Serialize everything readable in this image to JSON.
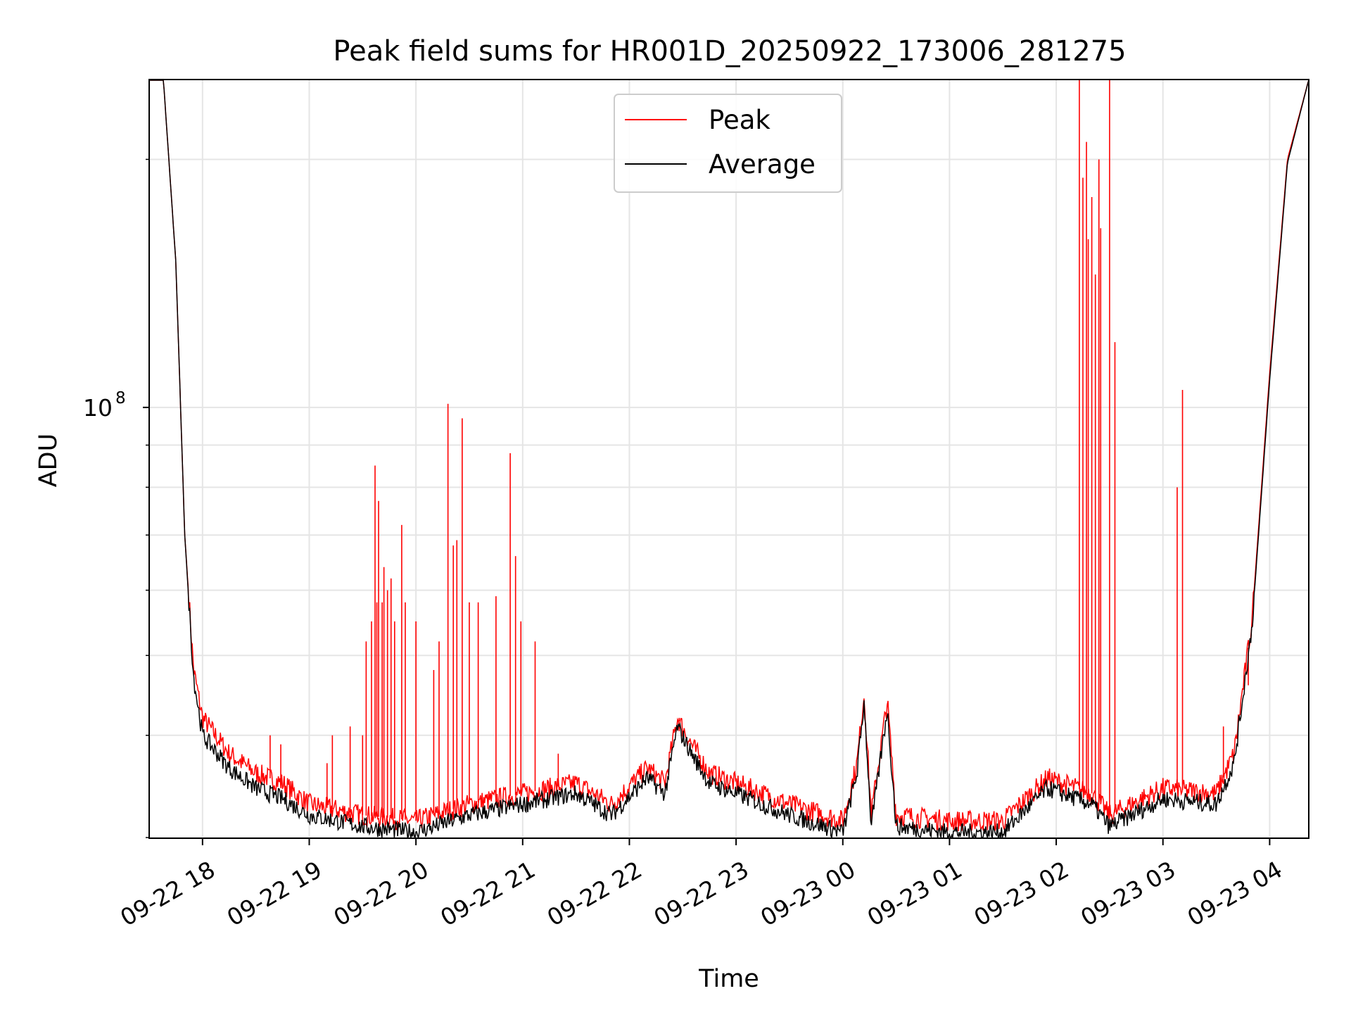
{
  "chart_data": {
    "type": "line",
    "title": "Peak field sums for HR001D_20250922_173006_281275",
    "xlabel": "Time",
    "ylabel": "ADU",
    "y_scale": "log",
    "grid": true,
    "legend_position": "upper center",
    "x_range": [
      "2025-09-22 17:30",
      "2025-09-23 04:22"
    ],
    "ylim": [
      30000000,
      250000000
    ],
    "x_ticks": [
      "09-22 18",
      "09-22 19",
      "09-22 20",
      "09-22 21",
      "09-22 22",
      "09-22 23",
      "09-23 00",
      "09-23 01",
      "09-23 02",
      "09-23 03",
      "09-23 04"
    ],
    "y_ticks": [
      {
        "label": "10",
        "exponent": "8",
        "value": 100000000
      }
    ],
    "series": [
      {
        "name": "Peak",
        "color": "#ff0000",
        "baseline": [
          [
            "2025-09-22 17:30",
            250000000
          ],
          [
            "2025-09-22 17:38",
            250000000
          ],
          [
            "2025-09-22 17:45",
            150000000
          ],
          [
            "2025-09-22 17:50",
            70000000
          ],
          [
            "2025-09-22 17:55",
            48000000
          ],
          [
            "2025-09-22 18:00",
            42000000
          ],
          [
            "2025-09-22 18:15",
            38000000
          ],
          [
            "2025-09-22 18:30",
            36000000
          ],
          [
            "2025-09-22 18:45",
            35000000
          ],
          [
            "2025-09-22 19:00",
            33000000
          ],
          [
            "2025-09-22 19:30",
            32000000
          ],
          [
            "2025-09-22 20:00",
            31500000
          ],
          [
            "2025-09-22 20:30",
            33000000
          ],
          [
            "2025-09-22 21:00",
            34000000
          ],
          [
            "2025-09-22 21:30",
            35000000
          ],
          [
            "2025-09-22 21:50",
            33000000
          ],
          [
            "2025-09-22 22:10",
            36500000
          ],
          [
            "2025-09-22 22:20",
            35000000
          ],
          [
            "2025-09-22 22:27",
            42000000
          ],
          [
            "2025-09-22 22:35",
            39000000
          ],
          [
            "2025-09-22 22:45",
            36000000
          ],
          [
            "2025-09-22 23:00",
            35000000
          ],
          [
            "2025-09-22 23:30",
            33000000
          ],
          [
            "2025-09-23 00:00",
            31500000
          ],
          [
            "2025-09-23 00:08",
            37000000
          ],
          [
            "2025-09-23 00:12",
            45000000
          ],
          [
            "2025-09-23 00:16",
            32000000
          ],
          [
            "2025-09-23 00:25",
            44000000
          ],
          [
            "2025-09-23 00:30",
            32000000
          ],
          [
            "2025-09-23 01:00",
            31500000
          ],
          [
            "2025-09-23 01:30",
            31500000
          ],
          [
            "2025-09-23 01:55",
            35500000
          ],
          [
            "2025-09-23 02:20",
            34000000
          ],
          [
            "2025-09-23 02:30",
            32000000
          ],
          [
            "2025-09-23 03:00",
            34500000
          ],
          [
            "2025-09-23 03:30",
            34000000
          ],
          [
            "2025-09-23 03:40",
            38000000
          ],
          [
            "2025-09-23 03:50",
            55000000
          ],
          [
            "2025-09-23 04:00",
            110000000
          ],
          [
            "2025-09-23 04:10",
            200000000
          ],
          [
            "2025-09-23 04:22",
            250000000
          ]
        ],
        "spikes": [
          [
            "2025-09-22 18:38",
            40000000
          ],
          [
            "2025-09-22 18:44",
            39000000
          ],
          [
            "2025-09-22 19:10",
            37000000
          ],
          [
            "2025-09-22 19:13",
            40000000
          ],
          [
            "2025-09-22 19:23",
            41000000
          ],
          [
            "2025-09-22 19:30",
            40000000
          ],
          [
            "2025-09-22 19:32",
            52000000
          ],
          [
            "2025-09-22 19:35",
            55000000
          ],
          [
            "2025-09-22 19:37",
            85000000
          ],
          [
            "2025-09-22 19:38",
            58000000
          ],
          [
            "2025-09-22 19:39",
            77000000
          ],
          [
            "2025-09-22 19:41",
            58000000
          ],
          [
            "2025-09-22 19:42",
            64000000
          ],
          [
            "2025-09-22 19:44",
            60000000
          ],
          [
            "2025-09-22 19:46",
            62000000
          ],
          [
            "2025-09-22 19:48",
            55000000
          ],
          [
            "2025-09-22 19:52",
            72000000
          ],
          [
            "2025-09-22 19:54",
            58000000
          ],
          [
            "2025-09-22 20:00",
            55000000
          ],
          [
            "2025-09-22 20:10",
            48000000
          ],
          [
            "2025-09-22 20:13",
            52000000
          ],
          [
            "2025-09-22 20:18",
            101000000
          ],
          [
            "2025-09-22 20:21",
            68000000
          ],
          [
            "2025-09-22 20:23",
            69000000
          ],
          [
            "2025-09-22 20:26",
            97000000
          ],
          [
            "2025-09-22 20:30",
            58000000
          ],
          [
            "2025-09-22 20:35",
            58000000
          ],
          [
            "2025-09-22 20:45",
            59000000
          ],
          [
            "2025-09-22 20:53",
            88000000
          ],
          [
            "2025-09-22 20:56",
            66000000
          ],
          [
            "2025-09-22 20:59",
            55000000
          ],
          [
            "2025-09-22 21:07",
            52000000
          ],
          [
            "2025-09-22 21:20",
            38000000
          ],
          [
            "2025-09-22 22:28",
            42000000
          ],
          [
            "2025-09-23 02:13",
            270000000
          ],
          [
            "2025-09-23 02:15",
            190000000
          ],
          [
            "2025-09-23 02:17",
            210000000
          ],
          [
            "2025-09-23 02:18",
            160000000
          ],
          [
            "2025-09-23 02:20",
            180000000
          ],
          [
            "2025-09-23 02:22",
            145000000
          ],
          [
            "2025-09-23 02:24",
            200000000
          ],
          [
            "2025-09-23 02:25",
            165000000
          ],
          [
            "2025-09-23 02:30",
            300000000
          ],
          [
            "2025-09-23 02:33",
            120000000
          ],
          [
            "2025-09-23 03:08",
            80000000
          ],
          [
            "2025-09-23 03:11",
            105000000
          ],
          [
            "2025-09-23 03:34",
            41000000
          ],
          [
            "2025-09-23 03:48",
            46000000
          ]
        ]
      },
      {
        "name": "Average",
        "color": "#000000",
        "values": [
          [
            "2025-09-22 17:30",
            250000000
          ],
          [
            "2025-09-22 17:38",
            250000000
          ],
          [
            "2025-09-22 17:45",
            150000000
          ],
          [
            "2025-09-22 17:50",
            70000000
          ],
          [
            "2025-09-22 17:55",
            47000000
          ],
          [
            "2025-09-22 18:00",
            40000000
          ],
          [
            "2025-09-22 18:15",
            36500000
          ],
          [
            "2025-09-22 18:30",
            34500000
          ],
          [
            "2025-09-22 18:45",
            33500000
          ],
          [
            "2025-09-22 19:00",
            32000000
          ],
          [
            "2025-09-22 19:30",
            31000000
          ],
          [
            "2025-09-22 20:00",
            30500000
          ],
          [
            "2025-09-22 20:30",
            32000000
          ],
          [
            "2025-09-22 21:00",
            33000000
          ],
          [
            "2025-09-22 21:30",
            34000000
          ],
          [
            "2025-09-22 21:50",
            32000000
          ],
          [
            "2025-09-22 22:10",
            35500000
          ],
          [
            "2025-09-22 22:20",
            34000000
          ],
          [
            "2025-09-22 22:27",
            41000000
          ],
          [
            "2025-09-22 22:35",
            38000000
          ],
          [
            "2025-09-22 22:45",
            35000000
          ],
          [
            "2025-09-22 23:00",
            34000000
          ],
          [
            "2025-09-22 23:30",
            32000000
          ],
          [
            "2025-09-23 00:00",
            30500000
          ],
          [
            "2025-09-23 00:08",
            36000000
          ],
          [
            "2025-09-23 00:12",
            44000000
          ],
          [
            "2025-09-23 00:16",
            31000000
          ],
          [
            "2025-09-23 00:25",
            43000000
          ],
          [
            "2025-09-23 00:30",
            31000000
          ],
          [
            "2025-09-23 01:00",
            30500000
          ],
          [
            "2025-09-23 01:30",
            30500000
          ],
          [
            "2025-09-23 01:55",
            34500000
          ],
          [
            "2025-09-23 02:20",
            33000000
          ],
          [
            "2025-09-23 02:30",
            31000000
          ],
          [
            "2025-09-23 03:00",
            33500000
          ],
          [
            "2025-09-23 03:30",
            33000000
          ],
          [
            "2025-09-23 03:40",
            37000000
          ],
          [
            "2025-09-23 03:50",
            54000000
          ],
          [
            "2025-09-23 04:00",
            108000000
          ],
          [
            "2025-09-23 04:10",
            198000000
          ],
          [
            "2025-09-23 04:22",
            250000000
          ]
        ]
      }
    ]
  }
}
